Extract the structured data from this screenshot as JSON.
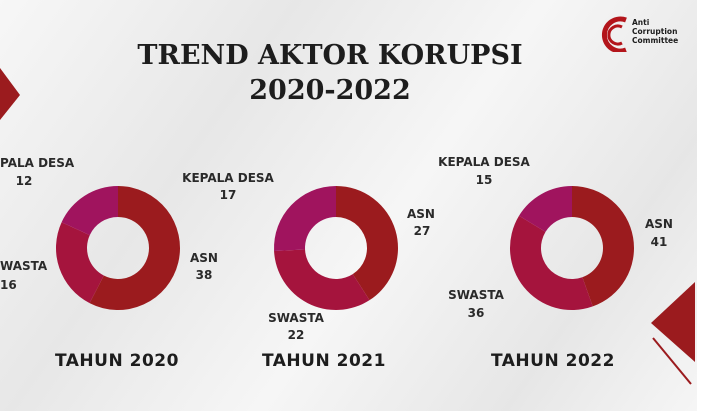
{
  "title": {
    "line1": "TREND AKTOR KORUPSI",
    "line2": "2020-2022"
  },
  "logo": {
    "line1": "Anti",
    "line2": "Corruption",
    "line3": "Committee"
  },
  "colors": {
    "asn": "#9b1b1e",
    "swasta": "#a5143d",
    "kepala_desa": "#a0145e",
    "accent": "#9b1b1e"
  },
  "chart_data": [
    {
      "type": "pie",
      "title": "TAHUN 2020",
      "slices": [
        {
          "name": "ASN",
          "value": 38
        },
        {
          "name": "SWASTA",
          "value": 16
        },
        {
          "name": "KEPALA DESA",
          "value": 12
        }
      ],
      "labels": {
        "kepala_desa": "PALA DESA",
        "swasta": "WASTA",
        "asn": "ASN"
      }
    },
    {
      "type": "pie",
      "title": "TAHUN 2021",
      "slices": [
        {
          "name": "ASN",
          "value": 27
        },
        {
          "name": "SWASTA",
          "value": 22
        },
        {
          "name": "KEPALA DESA",
          "value": 17
        }
      ],
      "labels": {
        "kepala_desa": "KEPALA DESA",
        "swasta": "SWASTA",
        "asn": "ASN"
      }
    },
    {
      "type": "pie",
      "title": "TAHUN 2022",
      "slices": [
        {
          "name": "ASN",
          "value": 41
        },
        {
          "name": "SWASTA",
          "value": 36
        },
        {
          "name": "KEPALA DESA",
          "value": 15
        }
      ],
      "labels": {
        "kepala_desa": "KEPALA DESA",
        "swasta": "SWASTA",
        "asn": "ASN"
      }
    }
  ]
}
